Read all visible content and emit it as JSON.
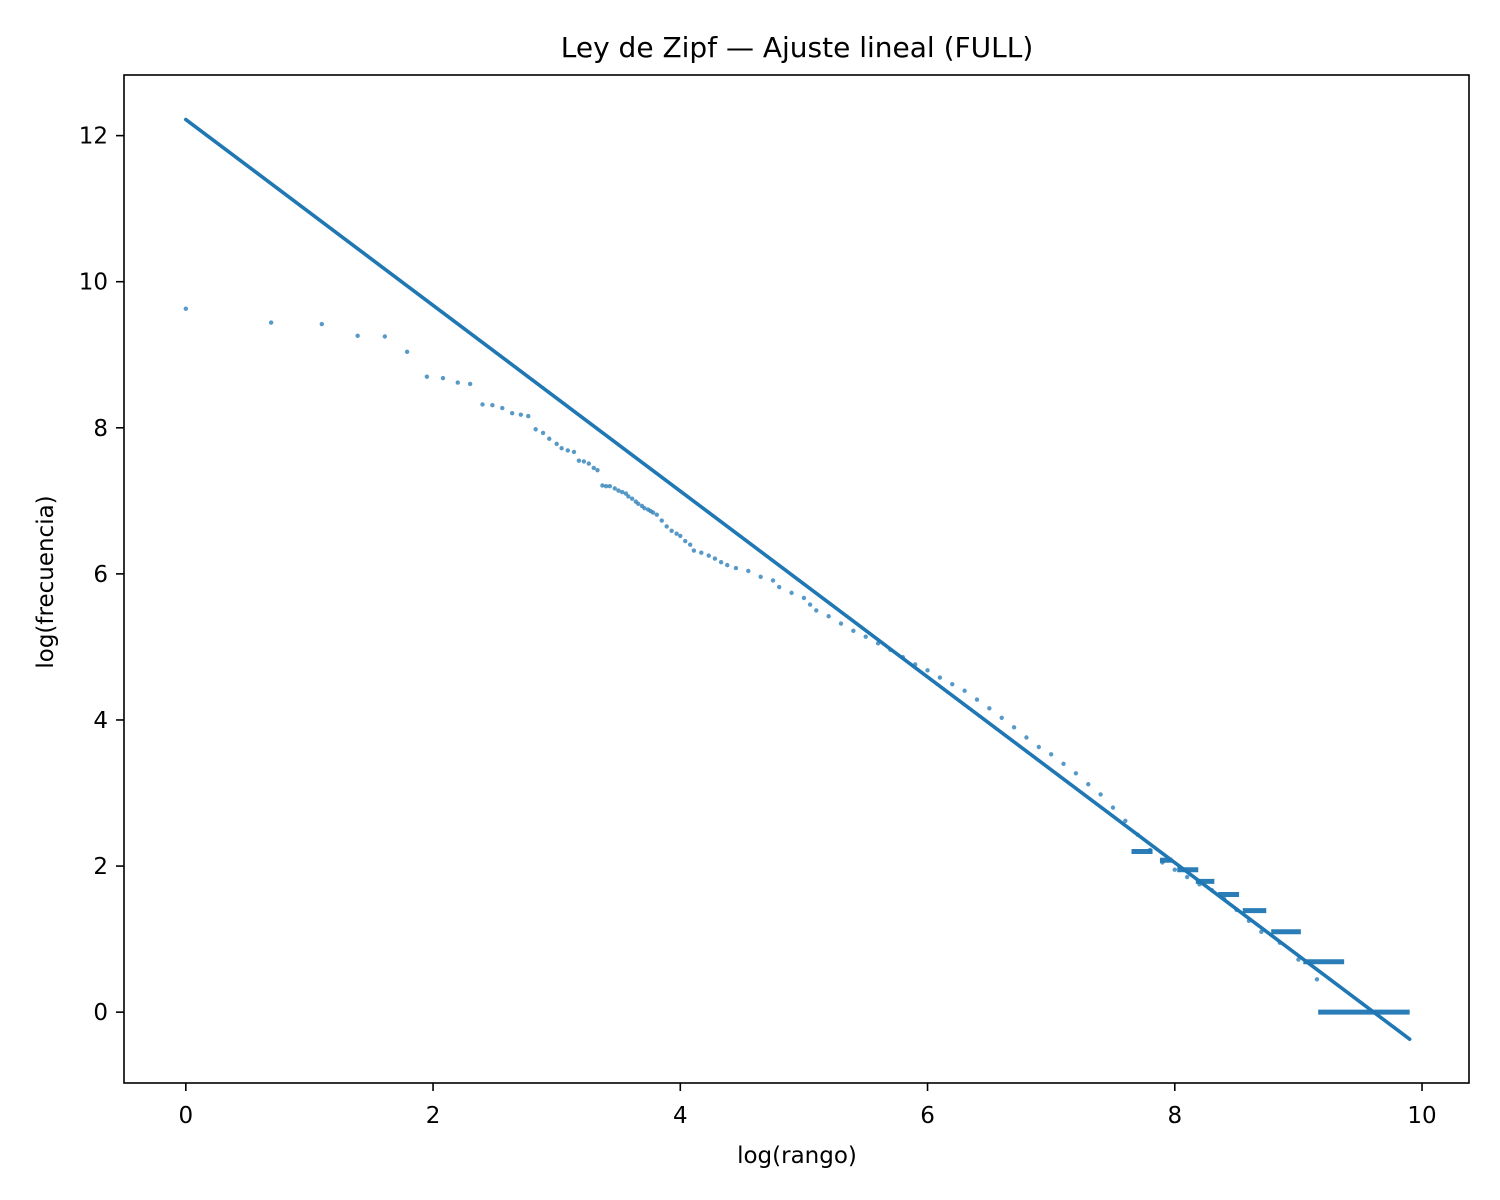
{
  "chart_data": {
    "type": "scatter",
    "title": "Ley de Zipf — Ajuste lineal (FULL)",
    "xlabel": "log(rango)",
    "ylabel": "log(frecuencia)",
    "xlim": [
      -0.5,
      10.38
    ],
    "ylim": [
      -0.97,
      12.83
    ],
    "xticks": [
      0,
      2,
      4,
      6,
      8,
      10
    ],
    "yticks": [
      0,
      2,
      4,
      6,
      8,
      10,
      12
    ],
    "grid": false,
    "legend": "none",
    "colors": {
      "series": "#1f77b4",
      "fit": "#1f77b4",
      "axes": "#000000"
    },
    "series": [
      {
        "kind": "scatter",
        "points": [
          [
            0.0,
            9.63
          ],
          [
            0.69,
            9.44
          ],
          [
            1.1,
            9.42
          ],
          [
            1.39,
            9.26
          ],
          [
            1.61,
            9.25
          ],
          [
            1.79,
            9.04
          ],
          [
            1.95,
            8.7
          ],
          [
            2.08,
            8.68
          ],
          [
            2.2,
            8.62
          ],
          [
            2.3,
            8.6
          ],
          [
            2.4,
            8.32
          ],
          [
            2.48,
            8.31
          ],
          [
            2.56,
            8.27
          ],
          [
            2.64,
            8.2
          ],
          [
            2.71,
            8.18
          ],
          [
            2.77,
            8.16
          ],
          [
            2.83,
            7.98
          ],
          [
            2.89,
            7.93
          ],
          [
            2.94,
            7.85
          ],
          [
            3.0,
            7.78
          ],
          [
            3.04,
            7.72
          ],
          [
            3.09,
            7.69
          ],
          [
            3.14,
            7.67
          ],
          [
            3.18,
            7.55
          ],
          [
            3.22,
            7.54
          ],
          [
            3.26,
            7.51
          ],
          [
            3.3,
            7.45
          ],
          [
            3.33,
            7.42
          ],
          [
            3.37,
            7.21
          ],
          [
            3.4,
            7.2
          ],
          [
            3.43,
            7.2
          ],
          [
            3.47,
            7.17
          ],
          [
            3.5,
            7.14
          ],
          [
            3.53,
            7.12
          ],
          [
            3.56,
            7.1
          ],
          [
            3.58,
            7.06
          ],
          [
            3.61,
            7.03
          ],
          [
            3.64,
            6.99
          ],
          [
            3.66,
            6.96
          ],
          [
            3.69,
            6.93
          ],
          [
            3.71,
            6.9
          ],
          [
            3.74,
            6.88
          ],
          [
            3.76,
            6.86
          ],
          [
            3.78,
            6.84
          ],
          [
            3.81,
            6.81
          ],
          [
            3.85,
            6.73
          ],
          [
            3.89,
            6.65
          ],
          [
            3.93,
            6.59
          ],
          [
            3.97,
            6.55
          ],
          [
            4.0,
            6.52
          ],
          [
            4.04,
            6.45
          ],
          [
            4.08,
            6.4
          ],
          [
            4.11,
            6.32
          ],
          [
            4.17,
            6.29
          ],
          [
            4.23,
            6.25
          ],
          [
            4.28,
            6.21
          ],
          [
            4.33,
            6.16
          ],
          [
            4.38,
            6.12
          ],
          [
            4.45,
            6.08
          ],
          [
            4.55,
            6.04
          ],
          [
            4.65,
            5.96
          ],
          [
            4.75,
            5.91
          ],
          [
            4.8,
            5.82
          ],
          [
            4.9,
            5.74
          ],
          [
            5.0,
            5.67
          ],
          [
            5.05,
            5.58
          ],
          [
            5.1,
            5.5
          ],
          [
            5.2,
            5.42
          ],
          [
            5.3,
            5.32
          ],
          [
            5.4,
            5.22
          ],
          [
            5.5,
            5.14
          ],
          [
            5.6,
            5.05
          ],
          [
            5.7,
            4.96
          ],
          [
            5.8,
            4.86
          ],
          [
            5.9,
            4.76
          ],
          [
            6.0,
            4.68
          ],
          [
            6.1,
            4.58
          ],
          [
            6.2,
            4.49
          ],
          [
            6.3,
            4.4
          ],
          [
            6.4,
            4.28
          ],
          [
            6.5,
            4.16
          ],
          [
            6.6,
            4.03
          ],
          [
            6.7,
            3.9
          ],
          [
            6.8,
            3.76
          ],
          [
            6.9,
            3.63
          ],
          [
            7.0,
            3.53
          ],
          [
            7.1,
            3.4
          ],
          [
            7.2,
            3.27
          ],
          [
            7.3,
            3.12
          ],
          [
            7.4,
            2.98
          ],
          [
            7.5,
            2.8
          ],
          [
            7.6,
            2.62
          ],
          [
            7.7,
            2.43
          ],
          [
            7.8,
            2.22
          ],
          [
            7.9,
            2.05
          ],
          [
            8.0,
            1.95
          ],
          [
            8.1,
            1.85
          ],
          [
            8.2,
            1.75
          ],
          [
            8.3,
            1.67
          ],
          [
            8.4,
            1.55
          ],
          [
            8.5,
            1.4
          ],
          [
            8.6,
            1.25
          ],
          [
            8.7,
            1.1
          ],
          [
            8.85,
            0.95
          ],
          [
            9.0,
            0.72
          ],
          [
            9.15,
            0.45
          ]
        ],
        "plateaus": [
          {
            "y": 2.2,
            "x_start": 7.65,
            "x_end": 7.82
          },
          {
            "y": 2.08,
            "x_start": 7.88,
            "x_end": 7.98
          },
          {
            "y": 1.95,
            "x_start": 8.02,
            "x_end": 8.19
          },
          {
            "y": 1.79,
            "x_start": 8.17,
            "x_end": 8.32
          },
          {
            "y": 1.61,
            "x_start": 8.35,
            "x_end": 8.52
          },
          {
            "y": 1.39,
            "x_start": 8.55,
            "x_end": 8.74
          },
          {
            "y": 1.1,
            "x_start": 8.78,
            "x_end": 9.02
          },
          {
            "y": 0.69,
            "x_start": 9.04,
            "x_end": 9.37
          },
          {
            "y": 0.0,
            "x_start": 9.16,
            "x_end": 9.9
          }
        ]
      },
      {
        "kind": "line",
        "x": [
          0.0,
          9.9
        ],
        "y": [
          12.22,
          -0.37
        ]
      }
    ]
  }
}
